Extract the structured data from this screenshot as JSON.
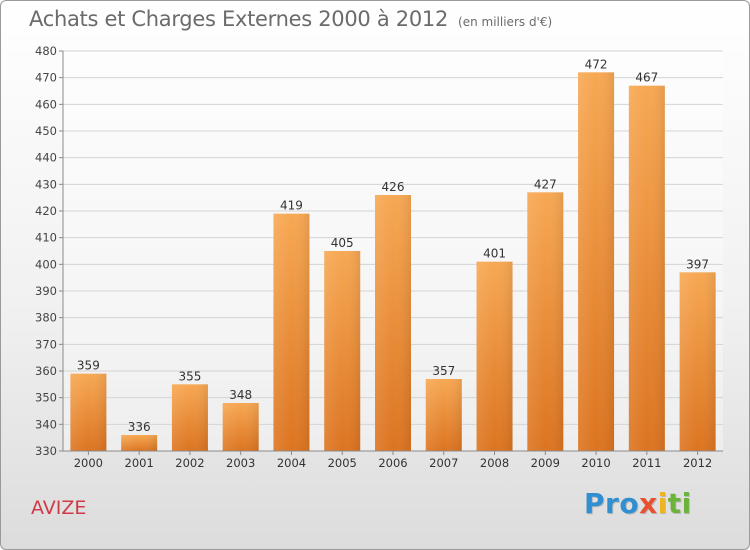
{
  "title": "Achats et Charges Externes 2000 à 2012",
  "unit": "(en milliers d'€)",
  "commune": "AVIZE",
  "logo": {
    "letters": [
      "P",
      "r",
      "o",
      "x",
      "i",
      "t",
      "i"
    ],
    "colors": [
      "#2f8fd0",
      "#2f8fd0",
      "#2f8fd0",
      "#e8502f",
      "#f0b51e",
      "#6bb33a",
      "#6bb33a"
    ]
  },
  "chart_data": {
    "type": "bar",
    "categories": [
      "2000",
      "2001",
      "2002",
      "2003",
      "2004",
      "2005",
      "2006",
      "2007",
      "2008",
      "2009",
      "2010",
      "2011",
      "2012"
    ],
    "values": [
      359,
      336,
      355,
      348,
      419,
      405,
      426,
      357,
      401,
      427,
      472,
      467,
      397
    ],
    "ylim": [
      330,
      480
    ],
    "yticks": [
      330,
      340,
      350,
      360,
      370,
      380,
      390,
      400,
      410,
      420,
      430,
      440,
      450,
      460,
      470,
      480
    ],
    "grid": true,
    "bar_color": "#f0923a"
  }
}
